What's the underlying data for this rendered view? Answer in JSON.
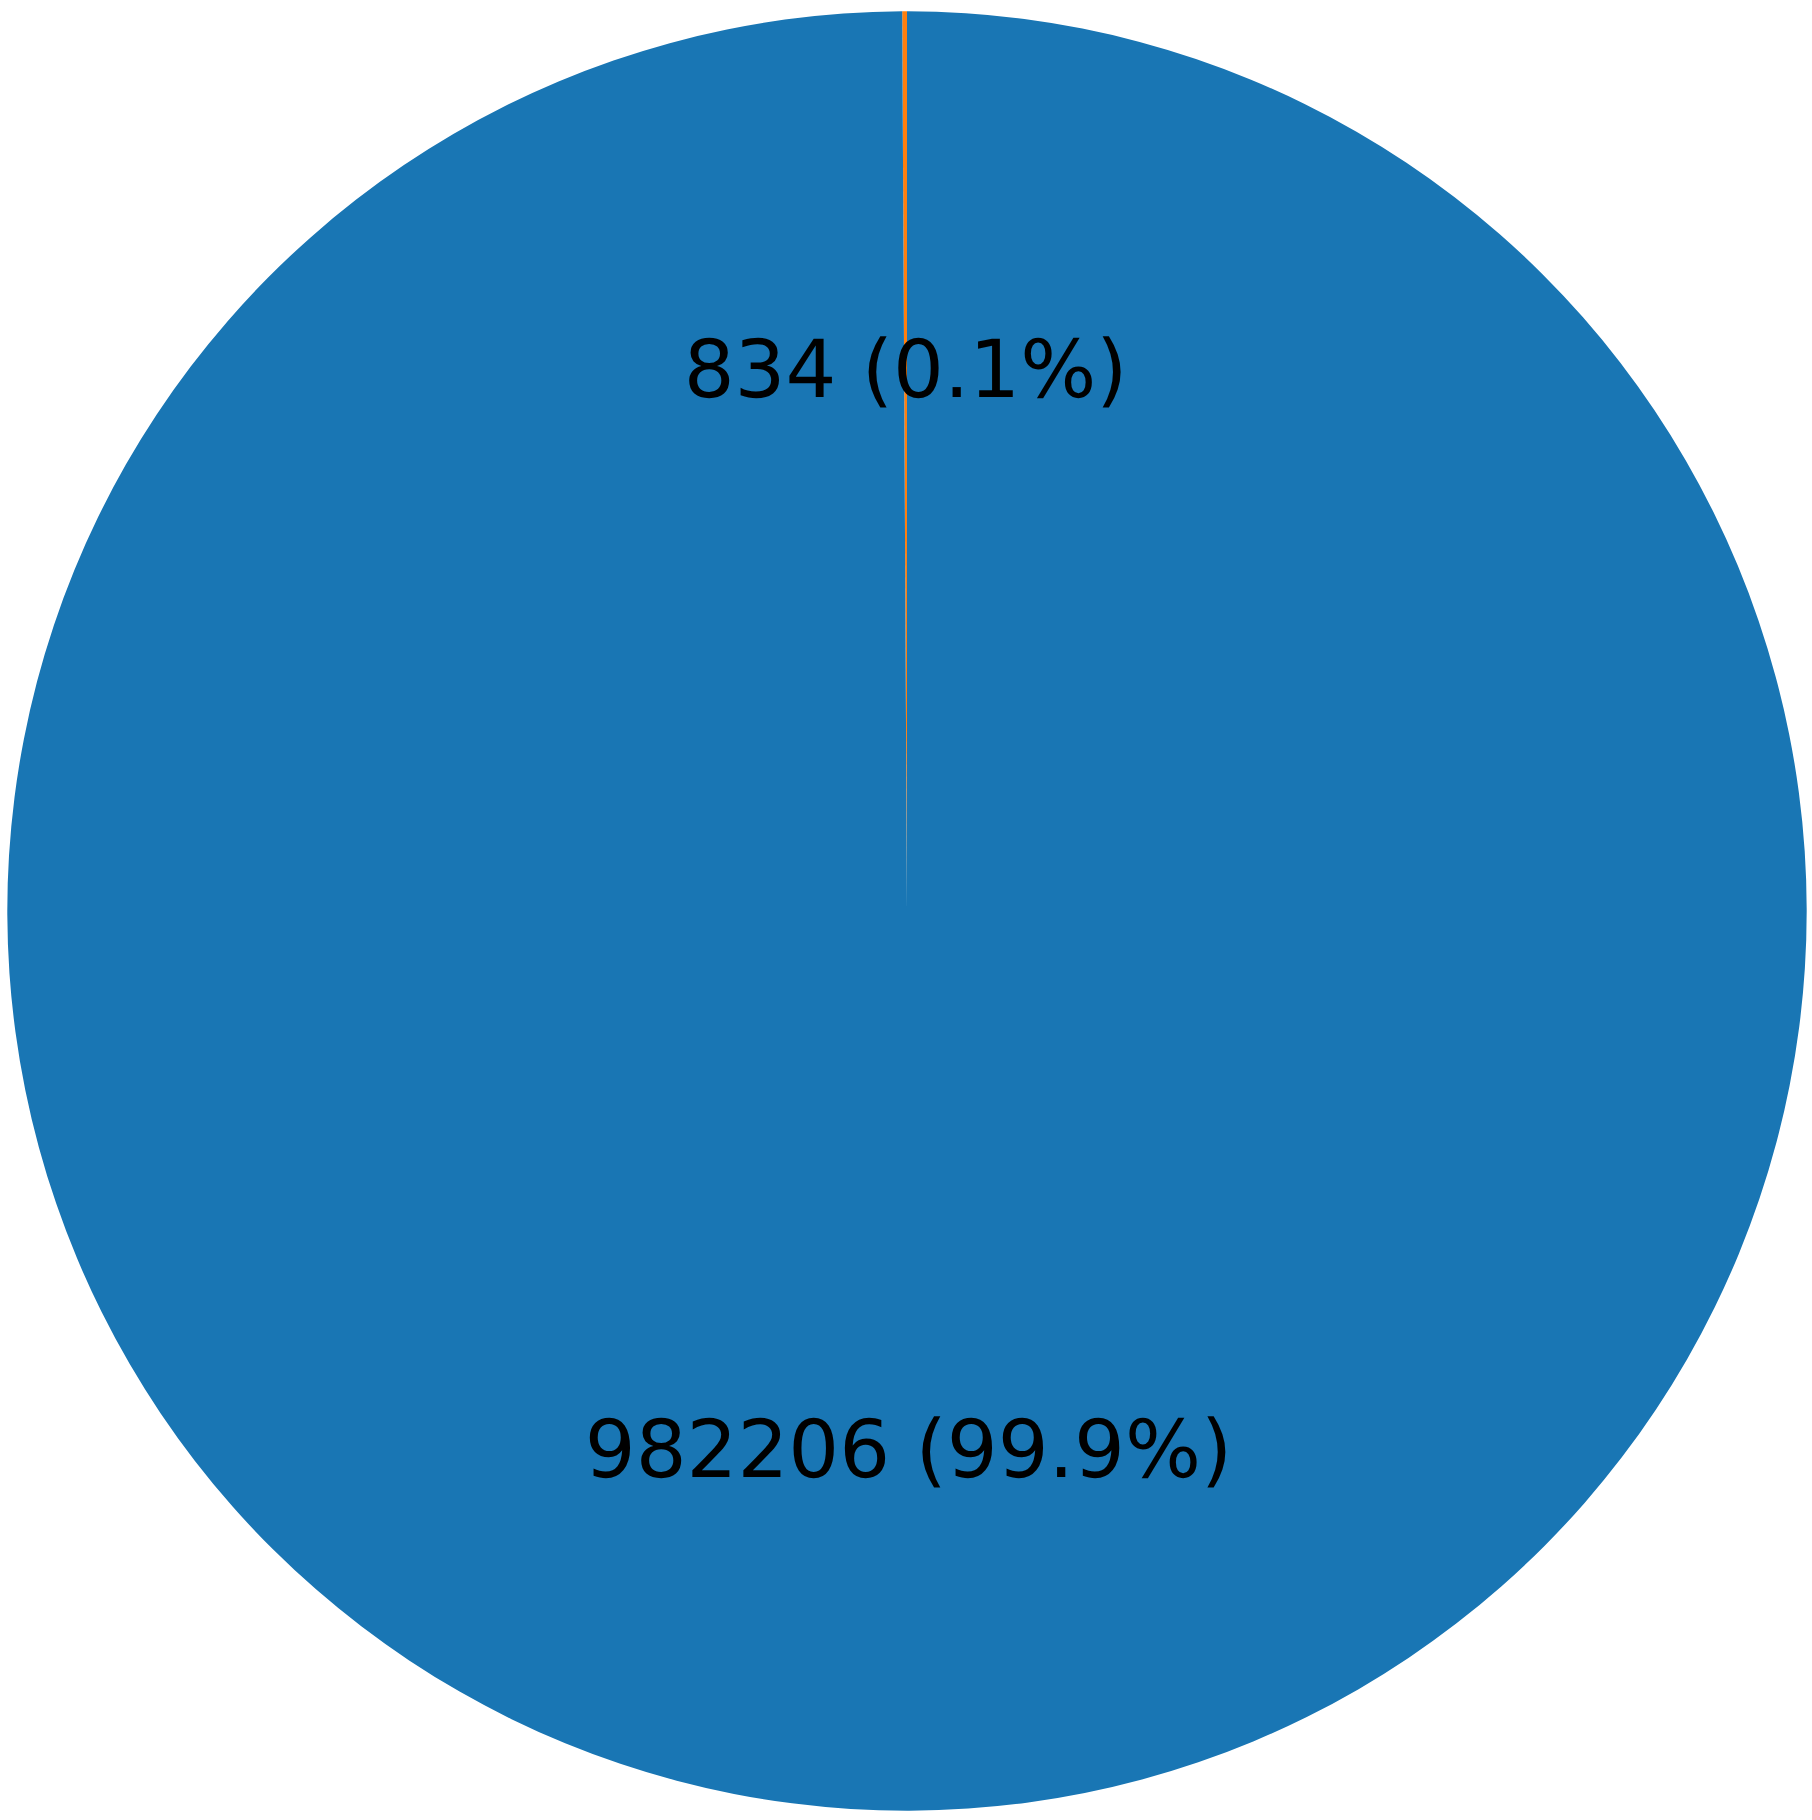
{
  "chart_data": {
    "type": "pie",
    "categories": [
      null,
      null
    ],
    "values": [
      834,
      982206
    ],
    "colors": [
      "#ff7f0e",
      "#1976b4"
    ],
    "value_labels": [
      "834 (0.1%)",
      "982206 (99.9%)"
    ]
  }
}
